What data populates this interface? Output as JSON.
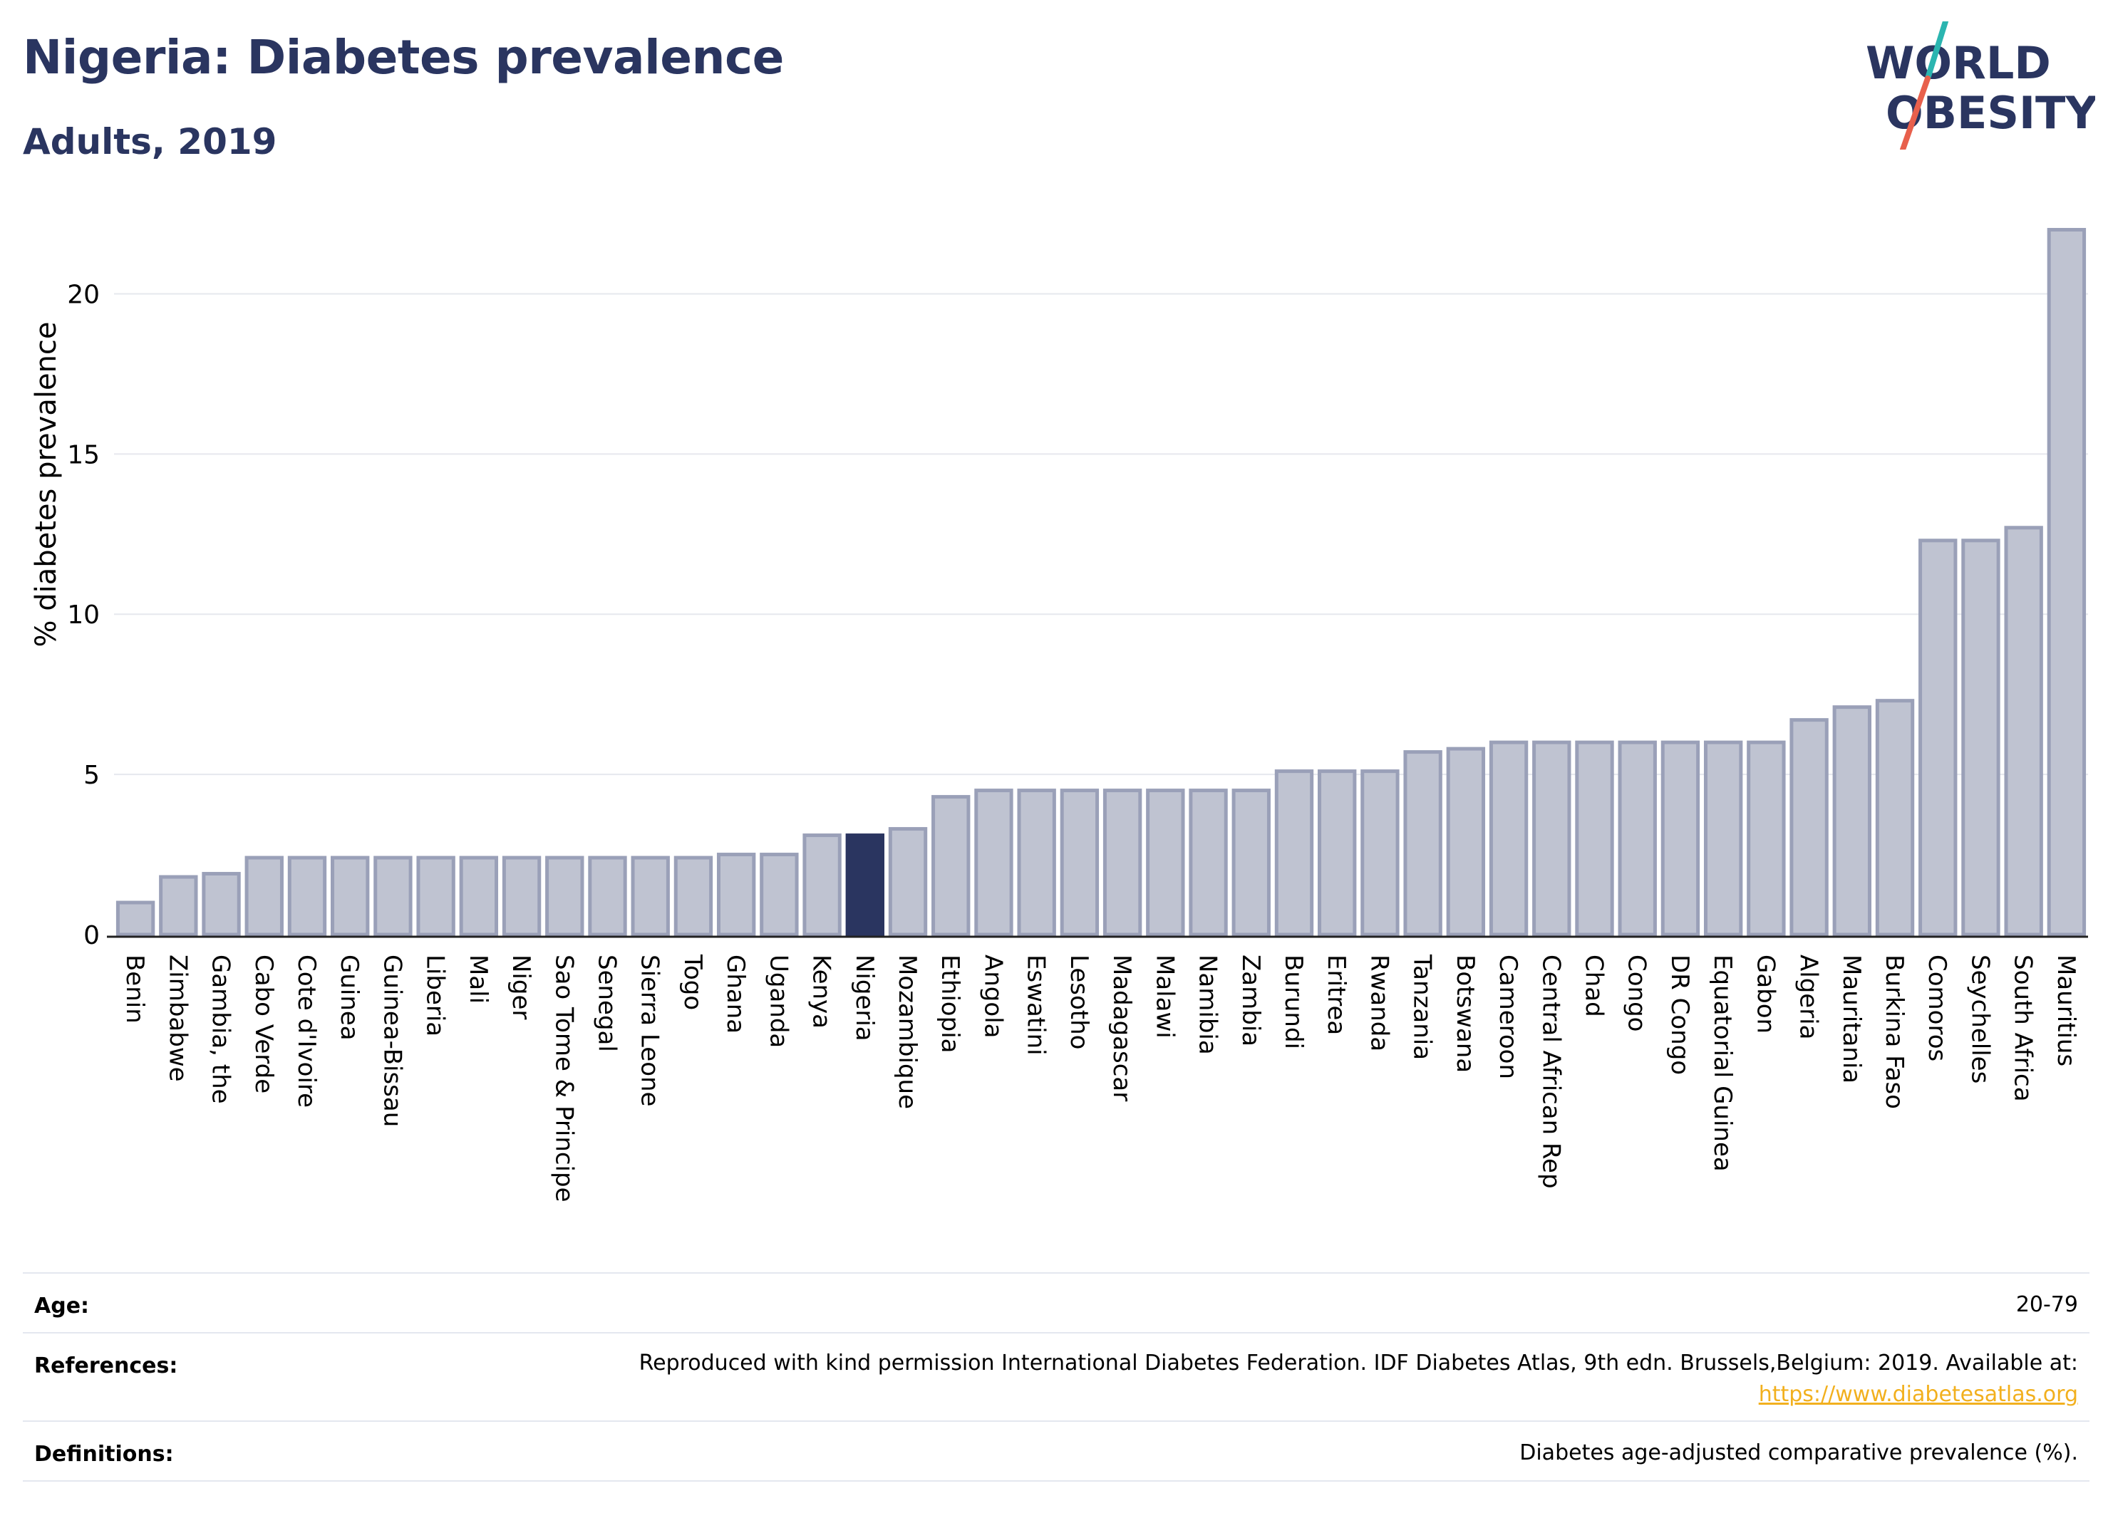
{
  "header": {
    "title": "Nigeria: Diabetes prevalence",
    "subtitle": "Adults, 2019"
  },
  "logo": {
    "line1": "WORLD",
    "line2": "OBESITY",
    "colors": {
      "text": "#2a3560",
      "slash_top": "#2bb5b0",
      "slash_bottom": "#e8604c"
    }
  },
  "chart_data": {
    "type": "bar",
    "title": "Nigeria: Diabetes prevalence",
    "subtitle": "Adults, 2019",
    "xlabel": "",
    "ylabel": "% diabetes prevalence",
    "ylim": [
      0,
      22.5
    ],
    "yticks": [
      0,
      5,
      10,
      15,
      20
    ],
    "grid": true,
    "highlight": "Nigeria",
    "colors": {
      "bar": "#bfc3d1",
      "bar_edge": "#9aa0b8",
      "highlight": "#2a3560",
      "grid": "#e6e8ee"
    },
    "categories": [
      "Benin",
      "Zimbabwe",
      "Gambia, the",
      "Cabo Verde",
      "Cote d'Ivoire",
      "Guinea",
      "Guinea-Bissau",
      "Liberia",
      "Mali",
      "Niger",
      "Sao Tome & Principe",
      "Senegal",
      "Sierra Leone",
      "Togo",
      "Ghana",
      "Uganda",
      "Kenya",
      "Nigeria",
      "Mozambique",
      "Ethiopia",
      "Angola",
      "Eswatini",
      "Lesotho",
      "Madagascar",
      "Malawi",
      "Namibia",
      "Zambia",
      "Burundi",
      "Eritrea",
      "Rwanda",
      "Tanzania",
      "Botswana",
      "Cameroon",
      "Central African Rep",
      "Chad",
      "Congo",
      "DR Congo",
      "Equatorial Guinea",
      "Gabon",
      "Algeria",
      "Mauritania",
      "Burkina Faso",
      "Comoros",
      "Seychelles",
      "South Africa",
      "Mauritius"
    ],
    "values": [
      1.0,
      1.8,
      1.9,
      2.4,
      2.4,
      2.4,
      2.4,
      2.4,
      2.4,
      2.4,
      2.4,
      2.4,
      2.4,
      2.4,
      2.5,
      2.5,
      3.1,
      3.1,
      3.3,
      4.3,
      4.5,
      4.5,
      4.5,
      4.5,
      4.5,
      4.5,
      4.5,
      5.1,
      5.1,
      5.1,
      5.7,
      5.8,
      6.0,
      6.0,
      6.0,
      6.0,
      6.0,
      6.0,
      6.0,
      6.7,
      7.1,
      7.3,
      12.3,
      12.3,
      12.7,
      22.0
    ]
  },
  "info": {
    "age_label": "Age:",
    "age_value": "20-79",
    "references_label": "References:",
    "references_value": "Reproduced with kind permission International Diabetes Federation. IDF Diabetes Atlas, 9th edn. Brussels,Belgium: 2019. Available at:",
    "references_link": "https://www.diabetesatlas.org",
    "definitions_label": "Definitions:",
    "definitions_value": "Diabetes age-adjusted comparative prevalence (%)."
  }
}
